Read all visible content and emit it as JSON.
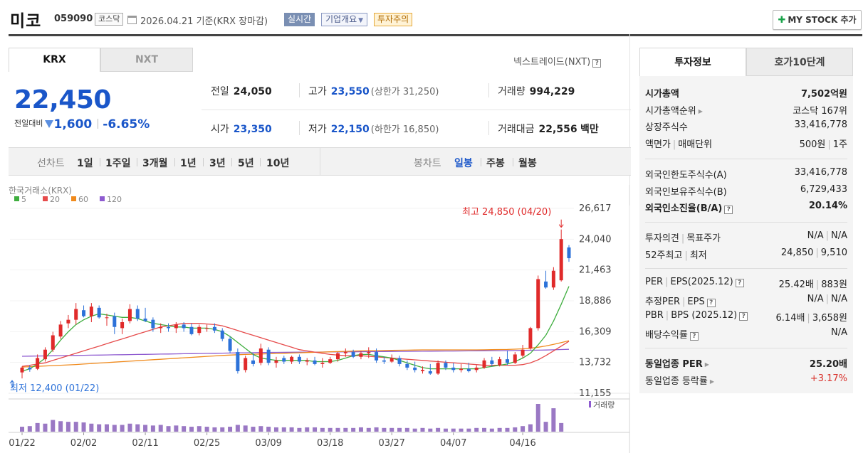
{
  "header": {
    "name": "미코",
    "code": "059090",
    "market": "코스닥",
    "date": "2026.04.21 기준(KRX 장마감)",
    "realtime": "실시간",
    "corp_info": "기업개요",
    "warning": "투자주의",
    "mystock": "MY STOCK 추가"
  },
  "market_tabs": [
    "KRX",
    "NXT"
  ],
  "nextrade_link": "넥스트레이드(NXT)",
  "price": {
    "current": "22,450",
    "diff_label": "전일대비",
    "diff": "1,600",
    "rate": "-6.65%"
  },
  "stats": {
    "prev": {
      "label": "전일",
      "value": "24,050"
    },
    "high": {
      "label": "고가",
      "value": "23,550",
      "sub": "(상한가 31,250)"
    },
    "volume": {
      "label": "거래량",
      "value": "994,229"
    },
    "open": {
      "label": "시가",
      "value": "23,350"
    },
    "low": {
      "label": "저가",
      "value": "22,150",
      "sub": "(하한가 16,850)"
    },
    "amount": {
      "label": "거래대금",
      "value": "22,556",
      "unit": "백만"
    }
  },
  "period": {
    "line_label": "선차트",
    "line_items": [
      "1일",
      "1주일",
      "3개월",
      "1년",
      "3년",
      "5년",
      "10년"
    ],
    "candle_label": "봉차트",
    "candle_items": [
      "일봉",
      "주봉",
      "월봉"
    ],
    "selected": "일봉"
  },
  "chart_data": {
    "type": "candlestick",
    "source": "한국거래소(KRX)",
    "legend": [
      "5",
      "20",
      "60",
      "120"
    ],
    "legend_colors": [
      "#3fae3f",
      "#e64b4b",
      "#f08a1c",
      "#8e5bd0"
    ],
    "y_ticks": [
      "26,617",
      "24,040",
      "21,463",
      "18,886",
      "16,309",
      "13,732",
      "11,155"
    ],
    "ylim": [
      11155,
      26617
    ],
    "x_ticks": [
      "01/22",
      "02/02",
      "02/11",
      "02/25",
      "03/09",
      "03/18",
      "03/27",
      "04/07",
      "04/16"
    ],
    "high_annotation": "최고 24,850 (04/20)",
    "low_annotation": "최저 12,400 (01/22)",
    "volume_label": "거래량",
    "candles": [
      [
        12900,
        13400,
        12400,
        13300
      ],
      [
        13300,
        13500,
        12950,
        13150
      ],
      [
        13200,
        14400,
        13100,
        14100
      ],
      [
        14000,
        15000,
        13800,
        14800
      ],
      [
        14800,
        16300,
        14600,
        16000
      ],
      [
        15900,
        17200,
        15700,
        16900
      ],
      [
        17000,
        17700,
        16600,
        17300
      ],
      [
        17300,
        18700,
        16900,
        18200
      ],
      [
        18100,
        18500,
        17500,
        17600
      ],
      [
        17600,
        18700,
        17100,
        18400
      ],
      [
        18300,
        18500,
        17400,
        17500
      ],
      [
        17500,
        17800,
        16800,
        17500
      ],
      [
        17600,
        17900,
        16100,
        16700
      ],
      [
        16600,
        17400,
        16100,
        17100
      ],
      [
        17200,
        18600,
        17000,
        18200
      ],
      [
        18200,
        18500,
        17200,
        17400
      ],
      [
        17400,
        18300,
        17100,
        17200
      ],
      [
        17300,
        17500,
        16300,
        16600
      ],
      [
        16600,
        17000,
        16200,
        16700
      ],
      [
        16700,
        17000,
        16300,
        16600
      ],
      [
        16600,
        17100,
        16200,
        16900
      ],
      [
        16900,
        17100,
        16300,
        16600
      ],
      [
        16700,
        17000,
        16000,
        16100
      ],
      [
        16200,
        16900,
        16000,
        16700
      ],
      [
        16600,
        16900,
        16300,
        16600
      ],
      [
        16700,
        17000,
        16200,
        16400
      ],
      [
        16400,
        16600,
        15500,
        15700
      ],
      [
        15700,
        15900,
        14500,
        14700
      ],
      [
        14600,
        14900,
        12800,
        13000
      ],
      [
        13100,
        14300,
        12900,
        14100
      ],
      [
        13900,
        14500,
        13400,
        13600
      ],
      [
        13700,
        15300,
        13500,
        14900
      ],
      [
        14800,
        15000,
        13500,
        13700
      ],
      [
        13700,
        14200,
        13300,
        13900
      ],
      [
        14100,
        14300,
        13600,
        13800
      ],
      [
        13800,
        14300,
        13600,
        14200
      ],
      [
        14200,
        14400,
        13600,
        13800
      ],
      [
        13800,
        14100,
        13500,
        13900
      ],
      [
        13900,
        14200,
        13500,
        13600
      ],
      [
        13600,
        14100,
        13300,
        13700
      ],
      [
        13700,
        14200,
        13600,
        14000
      ],
      [
        14000,
        14600,
        13800,
        14500
      ],
      [
        14500,
        14900,
        14200,
        14600
      ],
      [
        14600,
        14800,
        14100,
        14200
      ],
      [
        14200,
        14700,
        14000,
        14500
      ],
      [
        14500,
        15000,
        14100,
        14600
      ],
      [
        14600,
        14900,
        13700,
        13900
      ],
      [
        13900,
        14200,
        13600,
        13800
      ],
      [
        13800,
        14400,
        13700,
        14100
      ],
      [
        14100,
        14300,
        13400,
        13600
      ],
      [
        13600,
        13900,
        13100,
        13300
      ],
      [
        13300,
        13800,
        12900,
        13100
      ],
      [
        13000,
        13400,
        12800,
        13100
      ],
      [
        13000,
        13600,
        12700,
        12800
      ],
      [
        12800,
        13900,
        12700,
        13700
      ],
      [
        13700,
        13900,
        13100,
        13300
      ],
      [
        13300,
        13700,
        12900,
        13100
      ],
      [
        13100,
        13600,
        12900,
        13200
      ],
      [
        13200,
        13700,
        12900,
        13000
      ],
      [
        13100,
        13500,
        12900,
        13300
      ],
      [
        13300,
        14100,
        13200,
        13900
      ],
      [
        13900,
        14200,
        13400,
        13600
      ],
      [
        13500,
        14200,
        13400,
        14000
      ],
      [
        14000,
        14700,
        13500,
        13700
      ],
      [
        13700,
        14600,
        13600,
        14400
      ],
      [
        14300,
        15200,
        14100,
        14800
      ],
      [
        14900,
        16700,
        14800,
        16600
      ],
      [
        16600,
        21000,
        16400,
        20700
      ],
      [
        20500,
        21400,
        19900,
        20000
      ],
      [
        20000,
        21700,
        19800,
        21400
      ],
      [
        20600,
        24850,
        20500,
        24050
      ],
      [
        23350,
        23550,
        22150,
        22450
      ]
    ],
    "ma5": [
      13000,
      13200,
      13600,
      14100,
      14800,
      15600,
      16300,
      16900,
      17300,
      17600,
      17800,
      17700,
      17600,
      17500,
      17500,
      17400,
      17200,
      17000,
      16900,
      16800,
      16700,
      16700,
      16600,
      16600,
      16600,
      16500,
      16300,
      15900,
      15400,
      14900,
      14400,
      14100,
      14000,
      13900,
      13900,
      13900,
      13900,
      13900,
      13800,
      13800,
      13800,
      13900,
      14100,
      14300,
      14400,
      14400,
      14300,
      14200,
      14100,
      13900,
      13700,
      13500,
      13300,
      13200,
      13200,
      13200,
      13200,
      13200,
      13200,
      13200,
      13300,
      13400,
      13500,
      13600,
      13800,
      14100,
      14500,
      15200,
      16000,
      17200,
      18600,
      20100
    ],
    "ma20": [
      13400,
      13500,
      13600,
      13700,
      13900,
      14100,
      14300,
      14500,
      14700,
      14900,
      15100,
      15300,
      15500,
      15700,
      15900,
      16100,
      16300,
      16500,
      16700,
      16800,
      16900,
      17000,
      17000,
      17000,
      16950,
      16900,
      16800,
      16600,
      16400,
      16200,
      16000,
      15800,
      15600,
      15400,
      15200,
      15000,
      14800,
      14700,
      14600,
      14500,
      14400,
      14350,
      14300,
      14300,
      14300,
      14250,
      14200,
      14150,
      14100,
      14050,
      14000,
      13950,
      13900,
      13850,
      13800,
      13750,
      13700,
      13650,
      13600,
      13550,
      13500,
      13500,
      13500,
      13500,
      13500,
      13550,
      13700,
      13950,
      14300,
      14700,
      15100,
      15500
    ],
    "ma60": [
      13350,
      13380,
      13410,
      13440,
      13470,
      13500,
      13530,
      13560,
      13600,
      13640,
      13680,
      13720,
      13760,
      13800,
      13840,
      13880,
      13920,
      13960,
      14000,
      14040,
      14080,
      14120,
      14160,
      14200,
      14240,
      14280,
      14320,
      14350,
      14380,
      14400,
      14420,
      14440,
      14460,
      14480,
      14500,
      14520,
      14540,
      14560,
      14580,
      14600,
      14620,
      14640,
      14660,
      14680,
      14700,
      14710,
      14720,
      14730,
      14740,
      14750,
      14760,
      14770,
      14780,
      14780,
      14780,
      14780,
      14780,
      14780,
      14780,
      14780,
      14790,
      14800,
      14810,
      14820,
      14840,
      14870,
      14920,
      15000,
      15110,
      15240,
      15390,
      15550
    ],
    "ma120": [
      14250,
      14260,
      14270,
      14280,
      14290,
      14300,
      14310,
      14320,
      14330,
      14340,
      14350,
      14360,
      14370,
      14380,
      14390,
      14400,
      14410,
      14420,
      14430,
      14440,
      14450,
      14460,
      14470,
      14480,
      14490,
      14500,
      14510,
      14520,
      14530,
      14540,
      14550,
      14560,
      14570,
      14575,
      14580,
      14585,
      14590,
      14595,
      14600,
      14605,
      14610,
      14615,
      14620,
      14625,
      14630,
      14635,
      14640,
      14645,
      14650,
      14655,
      14660,
      14665,
      14670,
      14675,
      14680,
      14685,
      14690,
      14695,
      14700,
      14705,
      14710,
      14715,
      14720,
      14725,
      14730,
      14740,
      14750,
      14760,
      14770,
      14790,
      14810,
      14830
    ],
    "volume": [
      8,
      9,
      14,
      13,
      19,
      17,
      16,
      16,
      15,
      13,
      12,
      12,
      11,
      11,
      13,
      12,
      11,
      10,
      11,
      9,
      10,
      9,
      8,
      9,
      8,
      7,
      7,
      8,
      11,
      10,
      8,
      9,
      8,
      7,
      7,
      7,
      6,
      7,
      7,
      6,
      6,
      6,
      6,
      6,
      7,
      6,
      7,
      6,
      6,
      6,
      6,
      5,
      6,
      5,
      6,
      5,
      5,
      5,
      5,
      6,
      6,
      5,
      6,
      6,
      7,
      9,
      12,
      45,
      16,
      38,
      14
    ],
    "volume_max": 45
  },
  "invest": {
    "tabs": [
      "투자정보",
      "호가10단계"
    ],
    "group1": [
      {
        "k": "시가총액",
        "v": "7,502억원",
        "bold": true
      },
      {
        "k": "시가총액순위",
        "v": "코스닥 167위",
        "tri": true
      },
      {
        "k": "상장주식수",
        "v": "33,416,778"
      },
      {
        "k": "액면가",
        "k2": "매매단위",
        "v": "500원",
        "v2": "1주"
      }
    ],
    "group2": [
      {
        "k": "외국인한도주식수(A)",
        "v": "33,416,778"
      },
      {
        "k": "외국인보유주식수(B)",
        "v": "6,729,433"
      },
      {
        "k": "외국인소진율(B/A)",
        "v": "20.14%",
        "bold": true,
        "help": true
      }
    ],
    "group3": [
      {
        "k": "투자의견",
        "k2": "목표주가",
        "v": "N/A",
        "v2": "N/A"
      },
      {
        "k": "52주최고",
        "k2": "최저",
        "v": "24,850",
        "v2": "9,510"
      }
    ],
    "group4": [
      {
        "k": "PER",
        "k2": "EPS(2025.12)",
        "v": "25.42배",
        "v2": "883원",
        "help": true
      },
      {
        "k": "추정PER",
        "k2": "EPS",
        "v": "N/A",
        "v2": "N/A",
        "help": true
      },
      {
        "k": "PBR",
        "k2": "BPS (2025.12)",
        "v": "6.14배",
        "v2": "3,658원",
        "help": true
      },
      {
        "k": "배당수익률",
        "v": "N/A",
        "help": true
      }
    ],
    "group5": [
      {
        "k": "동일업종 PER",
        "v": "25.20배",
        "bold": true,
        "tri": true
      },
      {
        "k": "동일업종 등락률",
        "v": "+3.17%",
        "red": true,
        "tri": true
      }
    ]
  }
}
